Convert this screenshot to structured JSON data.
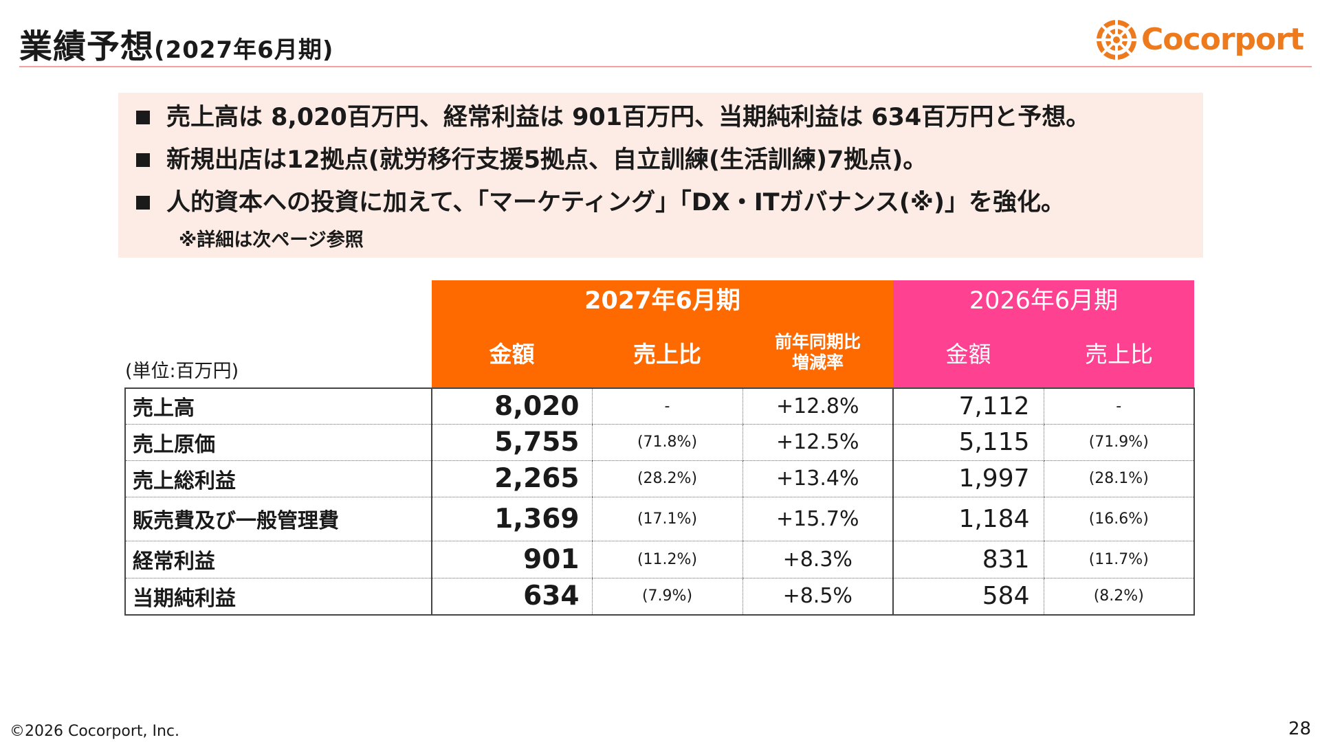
{
  "header": {
    "title_main": "業績予想",
    "title_sub": "(2027年6月期)",
    "brand": "Cocorport"
  },
  "summary": {
    "bullets": [
      "売上高は 8,020百万円、経常利益は 901百万円、当期純利益は 634百万円と予想。",
      "新規出店は12拠点(就労移行支援5拠点、自立訓練(生活訓練)7拠点)。",
      "人的資本への投資に加えて、「マーケティング」「DX・ITガバナンス(※)」を強化。"
    ],
    "note": "※詳細は次ページ参照"
  },
  "table": {
    "unit": "(単位:百万円)",
    "period_forecast": "2027年6月期",
    "period_prior": "2026年6月期",
    "col_amount": "金額",
    "col_ratio": "売上比",
    "col_yoy_line1": "前年同期比",
    "col_yoy_line2": "増減率",
    "col_amount_prior": "金額",
    "col_ratio_prior": "売上比",
    "rows": [
      {
        "label": "売上高",
        "amount": "8,020",
        "ratio": "-",
        "yoy": "+12.8%",
        "prior_amount": "7,112",
        "prior_ratio": "-"
      },
      {
        "label": "売上原価",
        "amount": "5,755",
        "ratio": "(71.8%)",
        "yoy": "+12.5%",
        "prior_amount": "5,115",
        "prior_ratio": "(71.9%)"
      },
      {
        "label": "売上総利益",
        "amount": "2,265",
        "ratio": "(28.2%)",
        "yoy": "+13.4%",
        "prior_amount": "1,997",
        "prior_ratio": "(28.1%)"
      },
      {
        "label": "販売費及び一般管理費",
        "amount": "1,369",
        "ratio": "(17.1%)",
        "yoy": "+15.7%",
        "prior_amount": "1,184",
        "prior_ratio": "(16.6%)"
      },
      {
        "label": "経常利益",
        "amount": "901",
        "ratio": "(11.2%)",
        "yoy": "+8.3%",
        "prior_amount": "831",
        "prior_ratio": "(11.7%)"
      },
      {
        "label": "当期純利益",
        "amount": "634",
        "ratio": "(7.9%)",
        "yoy": "+8.5%",
        "prior_amount": "584",
        "prior_ratio": "(8.2%)"
      }
    ]
  },
  "footer": {
    "copyright": "©2026 Cocorport, Inc.",
    "page_number": "28"
  },
  "colors": {
    "forecast_header": "#ff6a00",
    "prior_header": "#ff4191",
    "summary_bg": "#fcece5",
    "brand": "#ee7a1e"
  }
}
